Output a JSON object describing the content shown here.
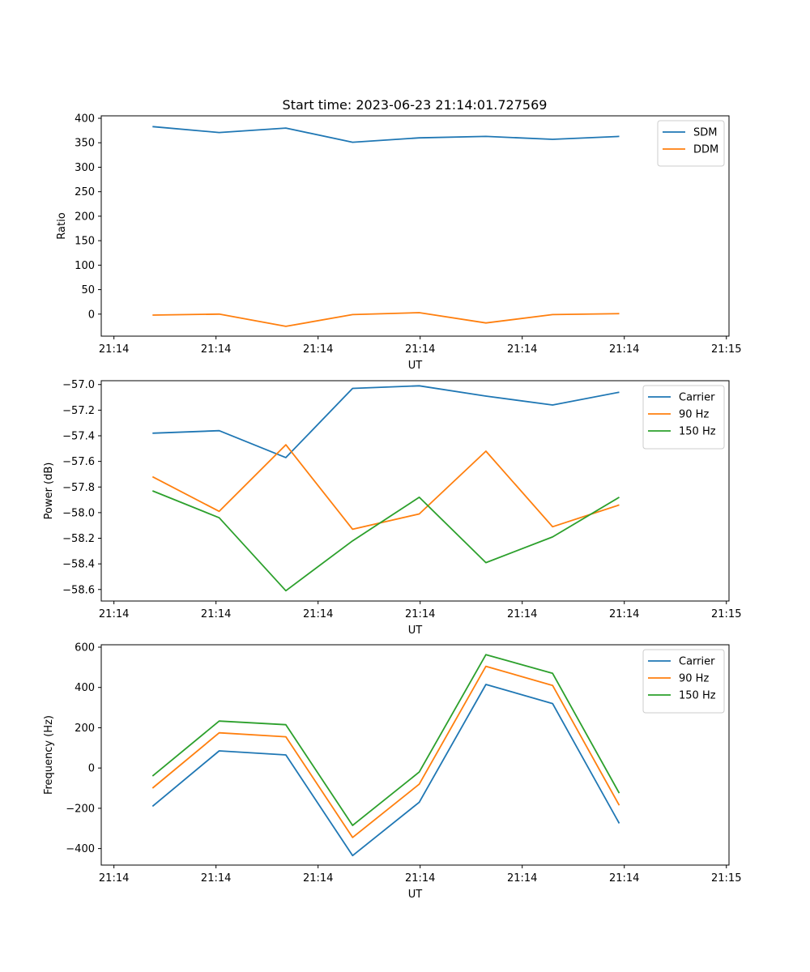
{
  "figure": {
    "title": "Start time: 2023-06-23 21:14:01.727569"
  },
  "chart_data": [
    {
      "type": "line",
      "title": "Start time: 2023-06-23 21:14:01.727569",
      "xlabel": "UT",
      "ylabel": "Ratio",
      "x_tick_labels": [
        "21:14",
        "21:14",
        "21:14",
        "21:14",
        "21:14",
        "21:14",
        "21:15"
      ],
      "y_ticks": [
        0,
        50,
        100,
        150,
        200,
        250,
        300,
        350,
        400
      ],
      "ylim": [
        -45,
        405
      ],
      "xlim": [
        0,
        6.12
      ],
      "x": [
        0.5,
        1.15,
        1.8,
        2.45,
        3.1,
        3.75,
        4.4,
        5.05
      ],
      "legend_position": "upper right",
      "series": [
        {
          "name": "SDM",
          "color": "#1f77b4",
          "values": [
            383,
            371,
            380,
            351,
            360,
            363,
            357,
            363
          ]
        },
        {
          "name": "DDM",
          "color": "#ff7f0e",
          "values": [
            -2,
            0,
            -25,
            -1,
            3,
            -18,
            -1,
            1
          ]
        }
      ]
    },
    {
      "type": "line",
      "xlabel": "UT",
      "ylabel": "Power (dB)",
      "x_tick_labels": [
        "21:14",
        "21:14",
        "21:14",
        "21:14",
        "21:14",
        "21:14",
        "21:15"
      ],
      "y_ticks": [
        -58.6,
        -58.4,
        -58.2,
        -58.0,
        -57.8,
        -57.6,
        -57.4,
        -57.2,
        -57.0
      ],
      "y_tick_labels": [
        "−58.6",
        "−58.4",
        "−58.2",
        "−58.0",
        "−57.8",
        "−57.6",
        "−57.4",
        "−57.2",
        "−57.0"
      ],
      "ylim": [
        -58.69,
        -56.97
      ],
      "xlim": [
        0,
        6.12
      ],
      "x": [
        0.5,
        1.15,
        1.8,
        2.45,
        3.1,
        3.75,
        4.4,
        5.05
      ],
      "legend_position": "upper right",
      "series": [
        {
          "name": "Carrier",
          "color": "#1f77b4",
          "values": [
            -57.38,
            -57.36,
            -57.57,
            -57.03,
            -57.01,
            -57.09,
            -57.16,
            -57.06
          ]
        },
        {
          "name": "90 Hz",
          "color": "#ff7f0e",
          "values": [
            -57.72,
            -57.99,
            -57.47,
            -58.13,
            -58.01,
            -57.52,
            -58.11,
            -57.94
          ]
        },
        {
          "name": "150 Hz",
          "color": "#2ca02c",
          "values": [
            -57.83,
            -58.04,
            -58.61,
            -58.22,
            -57.88,
            -58.39,
            -58.19,
            -57.88
          ]
        }
      ]
    },
    {
      "type": "line",
      "xlabel": "UT",
      "ylabel": "Frequency (Hz)",
      "x_tick_labels": [
        "21:14",
        "21:14",
        "21:14",
        "21:14",
        "21:14",
        "21:14",
        "21:15"
      ],
      "y_ticks": [
        -400,
        -200,
        0,
        200,
        400,
        600
      ],
      "y_tick_labels": [
        "−400",
        "−200",
        "0",
        "200",
        "400",
        "600"
      ],
      "ylim": [
        -482,
        612
      ],
      "xlim": [
        0,
        6.12
      ],
      "x": [
        0.5,
        1.15,
        1.8,
        2.45,
        3.1,
        3.75,
        4.4,
        5.05
      ],
      "legend_position": "upper right",
      "series": [
        {
          "name": "Carrier",
          "color": "#1f77b4",
          "values": [
            -190,
            85,
            65,
            -435,
            -170,
            415,
            320,
            -275
          ]
        },
        {
          "name": "90 Hz",
          "color": "#ff7f0e",
          "values": [
            -100,
            175,
            155,
            -345,
            -80,
            505,
            410,
            -185
          ]
        },
        {
          "name": "150 Hz",
          "color": "#2ca02c",
          "values": [
            -40,
            233,
            215,
            -285,
            -20,
            563,
            470,
            -125
          ]
        }
      ]
    }
  ]
}
